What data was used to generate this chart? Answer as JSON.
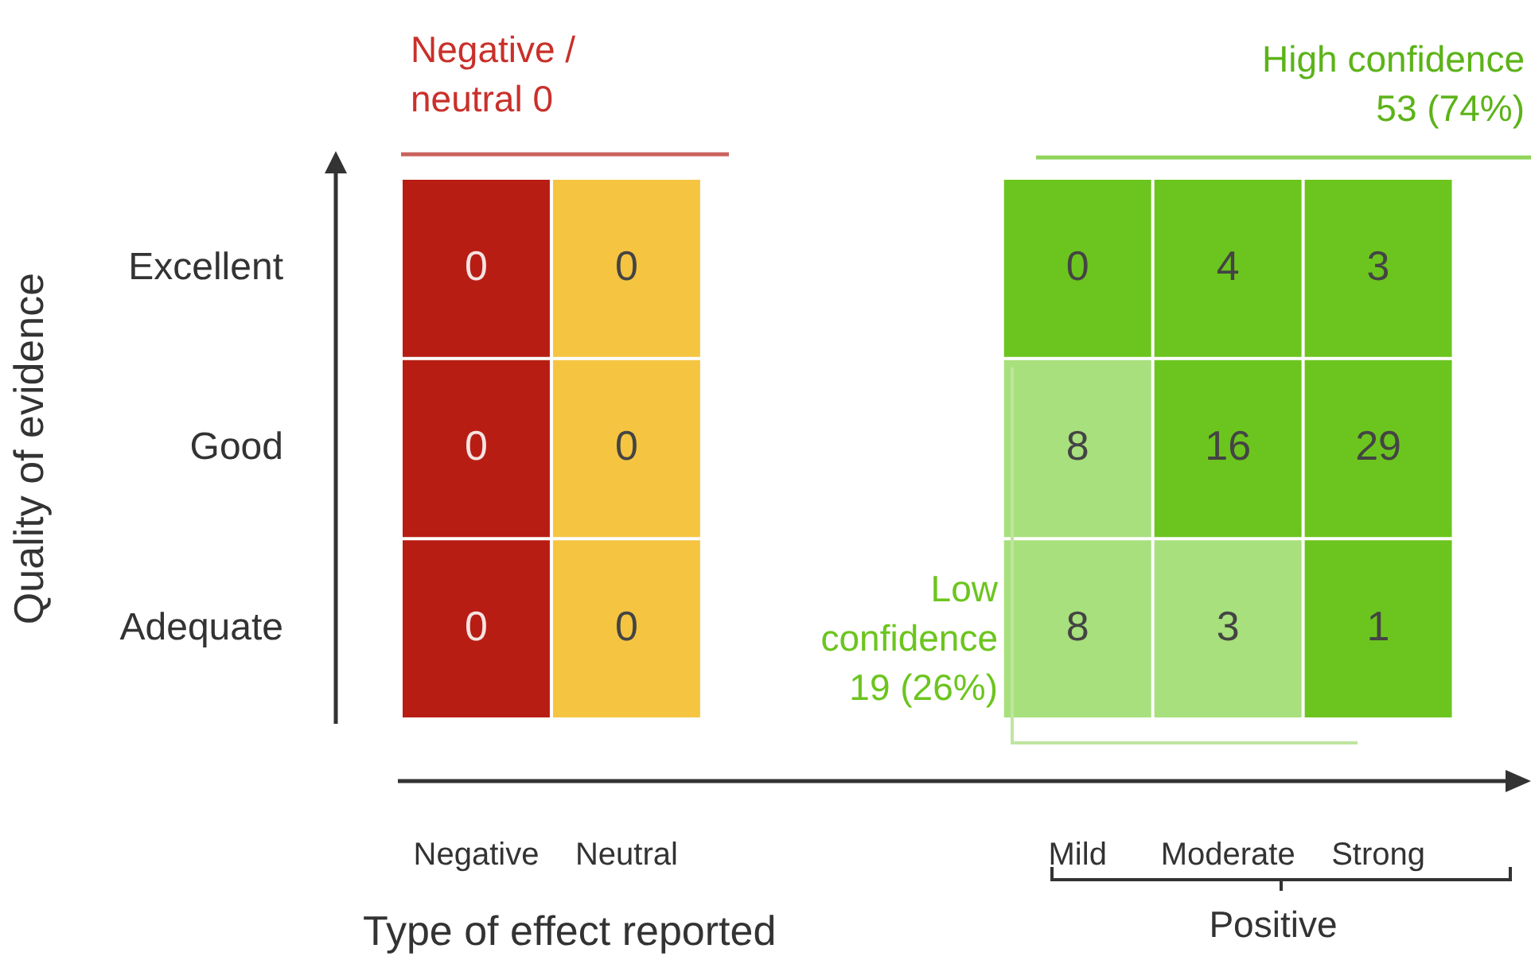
{
  "chart_data": {
    "type": "heatmap",
    "xlabel": "Type of effect reported",
    "ylabel": "Quality of evidence",
    "categories": [
      "Negative",
      "Neutral",
      null,
      null,
      "Mild",
      "Moderate",
      "Strong"
    ],
    "y_categories": [
      "Excellent",
      "Good",
      "Adequate"
    ],
    "cells": [
      [
        0,
        0,
        null,
        null,
        0,
        4,
        3
      ],
      [
        0,
        0,
        null,
        null,
        8,
        16,
        29
      ],
      [
        0,
        0,
        null,
        null,
        8,
        3,
        1
      ]
    ],
    "colors": [
      [
        "#b81d13",
        "#f5c542",
        null,
        null,
        "#6cc51e",
        "#6cc51e",
        "#6cc51e"
      ],
      [
        "#b81d13",
        "#f5c542",
        null,
        null,
        "#a7e07c",
        "#6cc51e",
        "#6cc51e"
      ],
      [
        "#b81d13",
        "#f5c542",
        null,
        null,
        "#a7e07c",
        "#a7e07c",
        "#6cc51e"
      ]
    ],
    "data_labels": true,
    "annotations": [
      "Negative / neutral 0",
      "High confidence 53 (74%)",
      "Low confidence 19 (26%)",
      "Positive"
    ]
  }
}
